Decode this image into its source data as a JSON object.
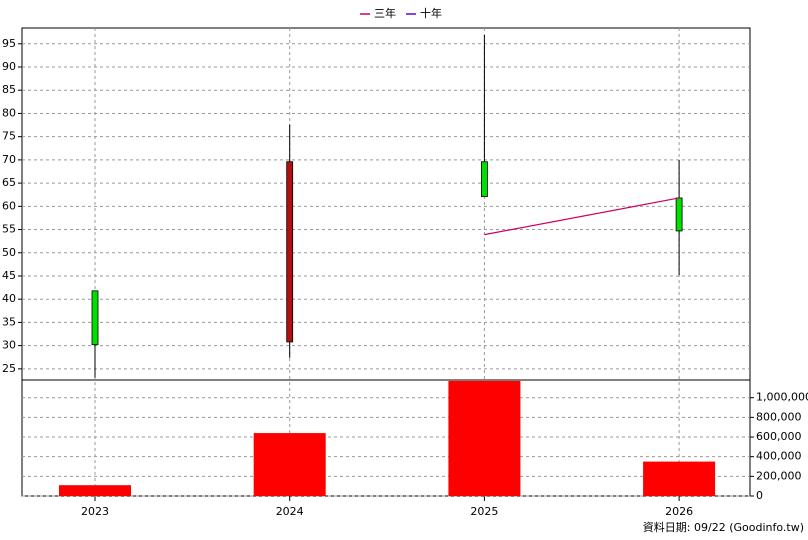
{
  "chart_data": [
    {
      "type": "candlestick",
      "categories": [
        "2023",
        "2024",
        "2025",
        "2026"
      ],
      "open": [
        41.8,
        30.8,
        69.6,
        61.8
      ],
      "high": [
        41.8,
        77.6,
        96.9,
        70.0
      ],
      "low": [
        23.1,
        27.4,
        62.1,
        45.2
      ],
      "close": [
        30.2,
        69.6,
        62.1,
        54.7
      ],
      "up_color": "#b01010",
      "down_color": "#00e000",
      "series": [
        {
          "name": "三年",
          "color": "#cc0066",
          "values": [
            null,
            null,
            53.9,
            61.8
          ]
        },
        {
          "name": "十年",
          "color": "#6a00cc",
          "values": [
            null,
            null,
            null,
            null
          ]
        }
      ],
      "ylim": [
        22.6,
        98.4
      ],
      "yticks": [
        25,
        30,
        35,
        40,
        45,
        50,
        55,
        60,
        65,
        70,
        75,
        80,
        85,
        90,
        95
      ],
      "grid": true,
      "legend": "top"
    },
    {
      "type": "bar",
      "values": [
        110000,
        640000,
        1170000,
        350000
      ],
      "color": "#ff0000",
      "ylim": [
        0,
        1180000
      ],
      "yticks": [
        0,
        {
          "value": 200000,
          "label": "200,000"
        },
        {
          "value": 400000,
          "label": "400,000"
        },
        {
          "value": 600000,
          "label": "600,000"
        },
        {
          "value": 800000,
          "label": "800,000"
        },
        {
          "value": 1000000,
          "label": "1,000,000"
        }
      ],
      "grid": true
    }
  ],
  "footer": "資料日期: 09/22  (Goodinfo.tw)"
}
